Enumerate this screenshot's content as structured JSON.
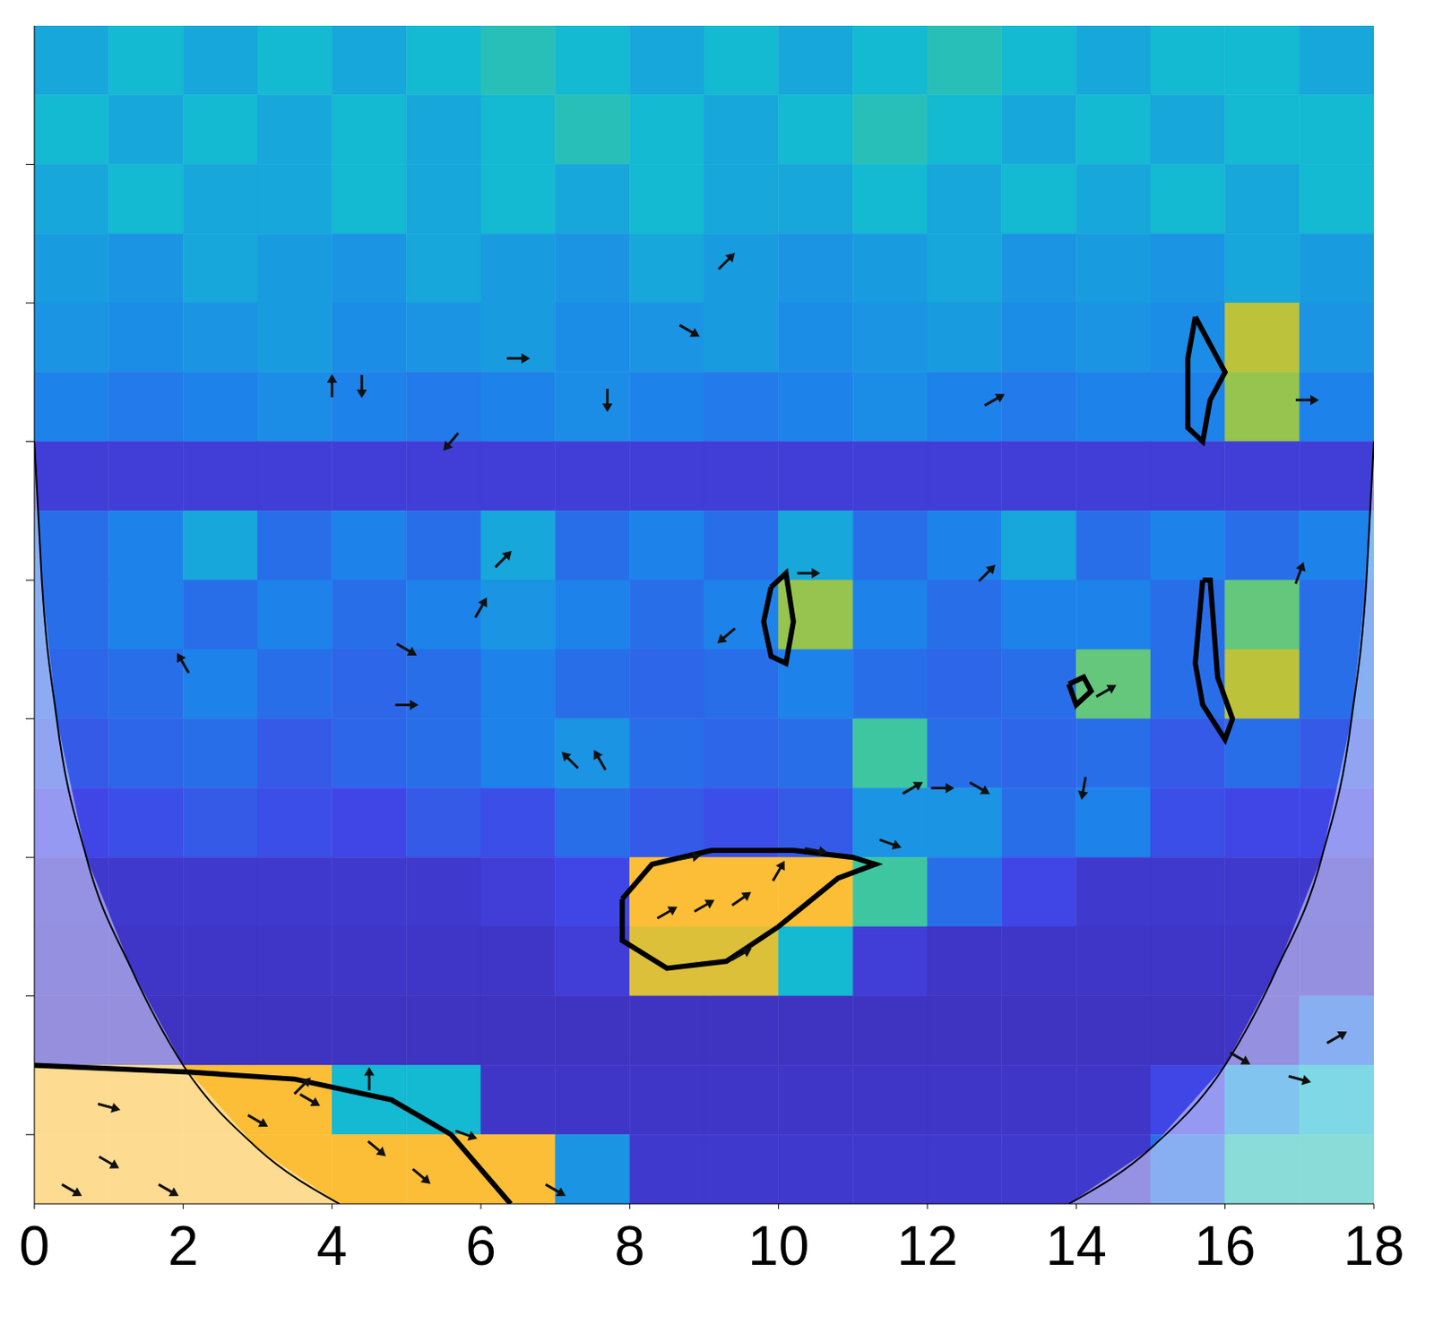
{
  "chart_data": {
    "type": "heatmap",
    "xlim": [
      0,
      18
    ],
    "ylim": [
      0,
      8.5
    ],
    "xticks": [
      0,
      2,
      4,
      6,
      8,
      10,
      12,
      14,
      16,
      18
    ],
    "yticks": [
      1,
      2,
      3,
      4,
      5,
      6,
      7,
      8
    ],
    "tick_labels": "x",
    "grid": false,
    "zlim": [
      0,
      1
    ],
    "x_edges": [
      0,
      1,
      2,
      3,
      4,
      5,
      6,
      7,
      8,
      9,
      10,
      11,
      12,
      13,
      14,
      15,
      16,
      17,
      18
    ],
    "y_edges": [
      0,
      0.5,
      1,
      1.5,
      2,
      2.5,
      3,
      3.5,
      4,
      4.5,
      5,
      5.5,
      6,
      6.5,
      7,
      7.5,
      8,
      8.5
    ],
    "z": [
      [
        0.45,
        0.5,
        0.45,
        0.5,
        0.45,
        0.5,
        0.55,
        0.5,
        0.45,
        0.5,
        0.45,
        0.5,
        0.55,
        0.5,
        0.45,
        0.5,
        0.5,
        0.45
      ],
      [
        0.5,
        0.45,
        0.5,
        0.45,
        0.5,
        0.45,
        0.5,
        0.55,
        0.5,
        0.45,
        0.5,
        0.55,
        0.5,
        0.45,
        0.5,
        0.45,
        0.5,
        0.5
      ],
      [
        0.45,
        0.5,
        0.45,
        0.45,
        0.5,
        0.45,
        0.5,
        0.45,
        0.5,
        0.45,
        0.45,
        0.5,
        0.45,
        0.5,
        0.45,
        0.5,
        0.45,
        0.5
      ],
      [
        0.42,
        0.4,
        0.45,
        0.42,
        0.4,
        0.45,
        0.42,
        0.4,
        0.45,
        0.42,
        0.4,
        0.42,
        0.45,
        0.4,
        0.42,
        0.4,
        0.45,
        0.42
      ],
      [
        0.4,
        0.38,
        0.4,
        0.42,
        0.38,
        0.4,
        0.42,
        0.38,
        0.4,
        0.42,
        0.38,
        0.4,
        0.42,
        0.38,
        0.4,
        0.38,
        0.75,
        0.4
      ],
      [
        0.35,
        0.33,
        0.35,
        0.38,
        0.35,
        0.33,
        0.35,
        0.38,
        0.35,
        0.33,
        0.35,
        0.38,
        0.35,
        0.33,
        0.35,
        0.35,
        0.7,
        0.35
      ],
      [
        0.15,
        0.15,
        0.15,
        0.15,
        0.15,
        0.15,
        0.15,
        0.15,
        0.15,
        0.15,
        0.15,
        0.15,
        0.15,
        0.15,
        0.15,
        0.15,
        0.15,
        0.15
      ],
      [
        0.3,
        0.35,
        0.45,
        0.3,
        0.35,
        0.3,
        0.45,
        0.3,
        0.35,
        0.3,
        0.45,
        0.3,
        0.35,
        0.45,
        0.3,
        0.35,
        0.3,
        0.35
      ],
      [
        0.3,
        0.35,
        0.3,
        0.35,
        0.3,
        0.35,
        0.4,
        0.35,
        0.3,
        0.35,
        0.7,
        0.35,
        0.3,
        0.35,
        0.35,
        0.3,
        0.65,
        0.3
      ],
      [
        0.28,
        0.3,
        0.35,
        0.3,
        0.28,
        0.3,
        0.35,
        0.3,
        0.28,
        0.3,
        0.35,
        0.3,
        0.28,
        0.3,
        0.65,
        0.3,
        0.75,
        0.3
      ],
      [
        0.25,
        0.28,
        0.3,
        0.25,
        0.28,
        0.3,
        0.35,
        0.4,
        0.3,
        0.28,
        0.3,
        0.6,
        0.3,
        0.28,
        0.3,
        0.25,
        0.3,
        0.25
      ],
      [
        0.2,
        0.22,
        0.25,
        0.22,
        0.2,
        0.25,
        0.22,
        0.3,
        0.25,
        0.22,
        0.25,
        0.4,
        0.4,
        0.3,
        0.35,
        0.22,
        0.2,
        0.2
      ],
      [
        0.12,
        0.12,
        0.12,
        0.12,
        0.12,
        0.12,
        0.15,
        0.2,
        0.85,
        0.85,
        0.85,
        0.6,
        0.3,
        0.2,
        0.12,
        0.12,
        0.12,
        0.12
      ],
      [
        0.1,
        0.1,
        0.1,
        0.1,
        0.1,
        0.1,
        0.1,
        0.15,
        0.8,
        0.8,
        0.5,
        0.15,
        0.1,
        0.1,
        0.1,
        0.1,
        0.1,
        0.1
      ],
      [
        0.08,
        0.08,
        0.08,
        0.08,
        0.08,
        0.08,
        0.08,
        0.08,
        0.08,
        0.08,
        0.08,
        0.08,
        0.08,
        0.08,
        0.08,
        0.08,
        0.1,
        0.3
      ],
      [
        0.85,
        0.85,
        0.85,
        0.85,
        0.5,
        0.5,
        0.1,
        0.1,
        0.1,
        0.1,
        0.1,
        0.1,
        0.1,
        0.1,
        0.1,
        0.2,
        0.4,
        0.5
      ],
      [
        0.85,
        0.85,
        0.85,
        0.85,
        0.85,
        0.85,
        0.85,
        0.4,
        0.12,
        0.12,
        0.12,
        0.12,
        0.12,
        0.12,
        0.12,
        0.3,
        0.55,
        0.55
      ]
    ],
    "coi": [
      {
        "x": [
          0,
          0.1,
          0.3,
          0.7,
          1.3,
          2.0,
          3.0,
          4.1
        ],
        "y": [
          3.0,
          4.0,
          5.0,
          6.0,
          6.8,
          7.5,
          8.1,
          8.5
        ]
      },
      {
        "x": [
          13.9,
          15.0,
          16.0,
          16.7,
          17.3,
          17.7,
          17.9,
          18
        ],
        "y": [
          8.5,
          8.1,
          7.5,
          6.8,
          6.0,
          5.0,
          4.0,
          3.0
        ]
      }
    ],
    "significant_regions": [
      {
        "x": [
          7.9,
          8.3,
          9.1,
          10.2,
          11.0,
          11.3,
          10.8,
          10.0,
          9.3,
          8.5,
          7.9,
          7.9
        ],
        "y": [
          6.3,
          6.05,
          5.95,
          5.95,
          6.0,
          6.05,
          6.15,
          6.5,
          6.75,
          6.8,
          6.6,
          6.3
        ]
      },
      {
        "x": [
          9.9,
          10.1,
          10.2,
          10.1,
          9.9,
          9.8,
          9.9
        ],
        "y": [
          4.05,
          3.95,
          4.3,
          4.6,
          4.55,
          4.3,
          4.05
        ]
      },
      {
        "x": [
          15.7,
          15.8,
          15.9,
          16.1,
          16.0,
          15.7,
          15.6,
          15.7
        ],
        "y": [
          4.0,
          4.0,
          4.7,
          5.0,
          5.15,
          4.9,
          4.6,
          4.0
        ]
      },
      {
        "x": [
          15.6,
          15.9,
          16.0,
          15.8,
          15.7,
          15.5,
          15.5,
          15.6
        ],
        "y": [
          2.1,
          2.4,
          2.5,
          2.7,
          3.0,
          2.9,
          2.4,
          2.1
        ]
      },
      {
        "x": [
          13.9,
          14.1,
          14.2,
          14.0,
          13.9
        ],
        "y": [
          4.75,
          4.7,
          4.8,
          4.9,
          4.75
        ]
      },
      {
        "x": [
          0.0,
          2.1,
          3.5,
          4.8,
          5.6,
          6.4
        ],
        "y": [
          7.5,
          7.55,
          7.6,
          7.75,
          8.0,
          8.5
        ]
      }
    ],
    "phase_arrows": [
      {
        "x": 8.5,
        "y": 6.4,
        "angle": 30
      },
      {
        "x": 9.0,
        "y": 6.35,
        "angle": 30
      },
      {
        "x": 9.5,
        "y": 6.3,
        "angle": 35
      },
      {
        "x": 10.0,
        "y": 6.1,
        "angle": 60
      },
      {
        "x": 9.5,
        "y": 6.7,
        "angle": 30
      },
      {
        "x": 8.8,
        "y": 6.0,
        "angle": 10
      },
      {
        "x": 10.5,
        "y": 5.95,
        "angle": -10
      },
      {
        "x": 11.5,
        "y": 5.9,
        "angle": -20
      },
      {
        "x": 11.8,
        "y": 5.5,
        "angle": 30
      },
      {
        "x": 12.2,
        "y": 5.5,
        "angle": 0
      },
      {
        "x": 12.7,
        "y": 5.5,
        "angle": -30
      },
      {
        "x": 14.1,
        "y": 5.5,
        "angle": -100
      },
      {
        "x": 7.2,
        "y": 5.3,
        "angle": 135
      },
      {
        "x": 7.6,
        "y": 5.3,
        "angle": 120
      },
      {
        "x": 5.0,
        "y": 4.5,
        "angle": -30
      },
      {
        "x": 5.0,
        "y": 4.9,
        "angle": 0
      },
      {
        "x": 2.0,
        "y": 4.6,
        "angle": 120
      },
      {
        "x": 6.0,
        "y": 4.2,
        "angle": 60
      },
      {
        "x": 9.3,
        "y": 4.4,
        "angle": -140
      },
      {
        "x": 10.4,
        "y": 3.95,
        "angle": 0
      },
      {
        "x": 12.8,
        "y": 3.95,
        "angle": 45
      },
      {
        "x": 17.0,
        "y": 3.95,
        "angle": 70
      },
      {
        "x": 6.3,
        "y": 3.85,
        "angle": 45
      },
      {
        "x": 14.4,
        "y": 4.8,
        "angle": 30
      },
      {
        "x": 5.6,
        "y": 3.0,
        "angle": -130
      },
      {
        "x": 12.9,
        "y": 2.7,
        "angle": 30
      },
      {
        "x": 4.0,
        "y": 2.6,
        "angle": 90
      },
      {
        "x": 4.4,
        "y": 2.6,
        "angle": -90
      },
      {
        "x": 6.5,
        "y": 2.4,
        "angle": 0
      },
      {
        "x": 7.7,
        "y": 2.7,
        "angle": -90
      },
      {
        "x": 17.1,
        "y": 2.7,
        "angle": 0
      },
      {
        "x": 8.8,
        "y": 2.2,
        "angle": -30
      },
      {
        "x": 9.3,
        "y": 1.7,
        "angle": 45
      },
      {
        "x": 3.0,
        "y": 7.9,
        "angle": -30
      },
      {
        "x": 3.7,
        "y": 7.75,
        "angle": -30
      },
      {
        "x": 4.6,
        "y": 8.1,
        "angle": -40
      },
      {
        "x": 5.2,
        "y": 8.3,
        "angle": -40
      },
      {
        "x": 5.8,
        "y": 8.0,
        "angle": -20
      },
      {
        "x": 4.5,
        "y": 7.6,
        "angle": 90
      },
      {
        "x": 3.6,
        "y": 7.65,
        "angle": 45
      },
      {
        "x": 7.0,
        "y": 8.4,
        "angle": -30
      },
      {
        "x": 1.0,
        "y": 7.8,
        "angle": -15
      },
      {
        "x": 1.0,
        "y": 8.2,
        "angle": -30
      },
      {
        "x": 1.8,
        "y": 8.4,
        "angle": -30
      },
      {
        "x": 0.5,
        "y": 8.4,
        "angle": -30
      },
      {
        "x": 17.5,
        "y": 7.3,
        "angle": 30
      },
      {
        "x": 17.0,
        "y": 7.6,
        "angle": -15
      },
      {
        "x": 16.2,
        "y": 7.45,
        "angle": -30
      }
    ]
  }
}
